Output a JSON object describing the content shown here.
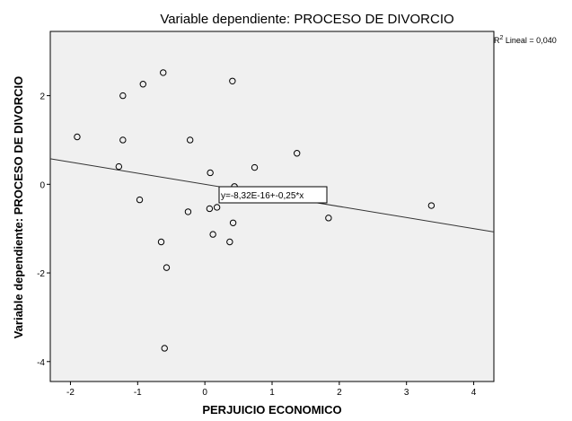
{
  "chart_data": {
    "type": "scatter",
    "title": "Variable dependiente: PROCESO DE DIVORCIO",
    "xlabel": "PERJUICIO ECONOMICO",
    "ylabel": "Variable dependiente: PROCESO DE DIVORCIO",
    "xlim": [
      -2.3,
      4.3
    ],
    "ylim": [
      -4.45,
      3.45
    ],
    "xticks": [
      -2,
      -1,
      0,
      1,
      2,
      3,
      4
    ],
    "yticks": [
      -4,
      -2,
      0,
      2
    ],
    "x_tick_labels": [
      "-2",
      "-1",
      "0",
      "1",
      "2",
      "3",
      "4"
    ],
    "y_tick_labels": [
      "-4",
      "-2",
      "0",
      "2"
    ],
    "grid": false,
    "background": "#f0f0f0",
    "point_color": "#000000",
    "points": [
      {
        "x": -0.62,
        "y": 2.52
      },
      {
        "x": 0.41,
        "y": 2.33
      },
      {
        "x": -0.92,
        "y": 2.26
      },
      {
        "x": -1.22,
        "y": 2.0
      },
      {
        "x": -1.9,
        "y": 1.07
      },
      {
        "x": -1.22,
        "y": 1.0
      },
      {
        "x": -0.22,
        "y": 1.0
      },
      {
        "x": 1.37,
        "y": 0.7
      },
      {
        "x": -1.28,
        "y": 0.4
      },
      {
        "x": 0.74,
        "y": 0.38
      },
      {
        "x": 0.08,
        "y": 0.26
      },
      {
        "x": 0.44,
        "y": -0.05
      },
      {
        "x": -0.97,
        "y": -0.35
      },
      {
        "x": 0.07,
        "y": -0.55
      },
      {
        "x": 0.18,
        "y": -0.52
      },
      {
        "x": -0.25,
        "y": -0.62
      },
      {
        "x": 3.37,
        "y": -0.48
      },
      {
        "x": 1.84,
        "y": -0.76
      },
      {
        "x": 0.42,
        "y": -0.87
      },
      {
        "x": 0.12,
        "y": -1.13
      },
      {
        "x": -0.65,
        "y": -1.3
      },
      {
        "x": 0.37,
        "y": -1.3
      },
      {
        "x": -0.57,
        "y": -1.88
      },
      {
        "x": -0.6,
        "y": -3.7
      }
    ],
    "fit_line": {
      "intercept": -8.32e-16,
      "slope": -0.25
    },
    "equation_label": "y=-8,32E-16+-0,25*x",
    "r2_prefix": "R",
    "r2_sup": "2",
    "r2_label": " Lineal = 0,040"
  }
}
